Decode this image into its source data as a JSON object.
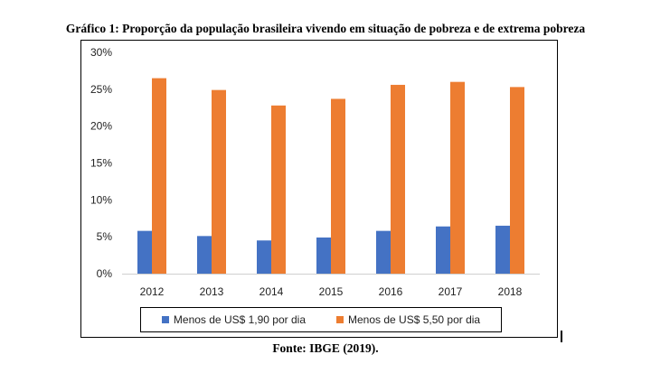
{
  "figure": {
    "title": "Gráfico 1: Proporção da população brasileira  vivendo em situação de pobreza  e de extrema pobreza",
    "source": "Fonte: IBGE (2019)."
  },
  "chart_data": {
    "type": "bar",
    "categories": [
      "2012",
      "2013",
      "2014",
      "2015",
      "2016",
      "2017",
      "2018"
    ],
    "series": [
      {
        "name": "Menos de US$ 1,90 por dia",
        "color": "#4472C4",
        "values": [
          5.8,
          5.1,
          4.5,
          4.9,
          5.8,
          6.4,
          6.5
        ]
      },
      {
        "name": "Menos de US$ 5,50 por dia",
        "color": "#ED7D31",
        "values": [
          26.5,
          24.9,
          22.8,
          23.7,
          25.6,
          26.0,
          25.3
        ]
      }
    ],
    "yticks": [
      "0%",
      "5%",
      "10%",
      "15%",
      "20%",
      "25%",
      "30%"
    ],
    "ylim": [
      0,
      30
    ],
    "y_unit": "%",
    "gridlines": false,
    "legend_position": "bottom"
  }
}
